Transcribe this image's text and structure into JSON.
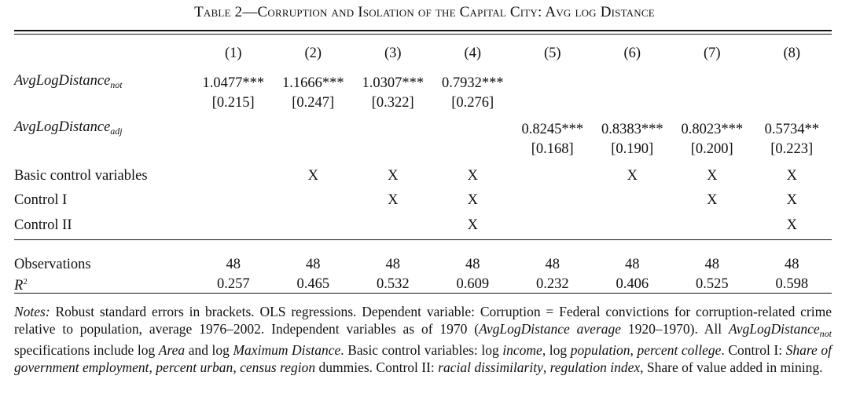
{
  "table": {
    "title_prefix": "Table 2—",
    "title_main": "Corruption and Isolation of the Capital City: Avg log Distance",
    "columns": [
      "(1)",
      "(2)",
      "(3)",
      "(4)",
      "(5)",
      "(6)",
      "(7)",
      "(8)"
    ],
    "var_not": {
      "label_base": "AvgLogDistance",
      "label_sub": "not",
      "coefs": [
        "1.0477***",
        "1.1666***",
        "1.0307***",
        "0.7932***",
        "",
        "",
        "",
        ""
      ],
      "ses": [
        "[0.215]",
        "[0.247]",
        "[0.322]",
        "[0.276]",
        "",
        "",
        "",
        ""
      ]
    },
    "var_adj": {
      "label_base": "AvgLogDistance",
      "label_sub": "adj",
      "coefs": [
        "",
        "",
        "",
        "",
        "0.8245***",
        "0.8383***",
        "0.8023***",
        "0.5734**"
      ],
      "ses": [
        "",
        "",
        "",
        "",
        "[0.168]",
        "[0.190]",
        "[0.200]",
        "[0.223]"
      ]
    },
    "controls": [
      {
        "label": "Basic control variables",
        "marks": [
          "",
          "X",
          "X",
          "X",
          "",
          "X",
          "X",
          "X"
        ]
      },
      {
        "label": "Control I",
        "marks": [
          "",
          "",
          "X",
          "X",
          "",
          "",
          "X",
          "X"
        ]
      },
      {
        "label": "Control II",
        "marks": [
          "",
          "",
          "",
          "X",
          "",
          "",
          "",
          "X"
        ]
      }
    ],
    "observations": {
      "label": "Observations",
      "values": [
        "48",
        "48",
        "48",
        "48",
        "48",
        "48",
        "48",
        "48"
      ]
    },
    "r2": {
      "label": "R",
      "sup": "2",
      "values": [
        "0.257",
        "0.465",
        "0.532",
        "0.609",
        "0.232",
        "0.406",
        "0.525",
        "0.598"
      ]
    }
  },
  "notes": {
    "lead": "Notes:",
    "t1": " Robust standard errors in brackets. OLS regressions. Dependent variable: Corruption = Federal convictions for corruption-related crime relative to population, average 1976–2002. Independent variables as of 1970 (",
    "i1": "AvgLogDistance average",
    "t2": " 1920–1970). All ",
    "i2": "AvgLogDistance",
    "i2sub": "not",
    "t3": " specifications include log ",
    "i3": "Area",
    "t4": " and log ",
    "i4": "Maximum Distance",
    "t5": ". Basic control variables: log ",
    "i5": "income",
    "t6": ", log ",
    "i6": "population",
    "t7": ", ",
    "i7": "percent college",
    "t8": ". Control I: ",
    "i8": "Share of government employment",
    "t9": ", ",
    "i9": "percent urban",
    "t10": ", ",
    "i10": "census region",
    "t11": " dummies. Control II: ",
    "i11": "racial dissimilarity",
    "t12": ", ",
    "i12": "regulation index",
    "t13": ", Share of value added in mining."
  }
}
